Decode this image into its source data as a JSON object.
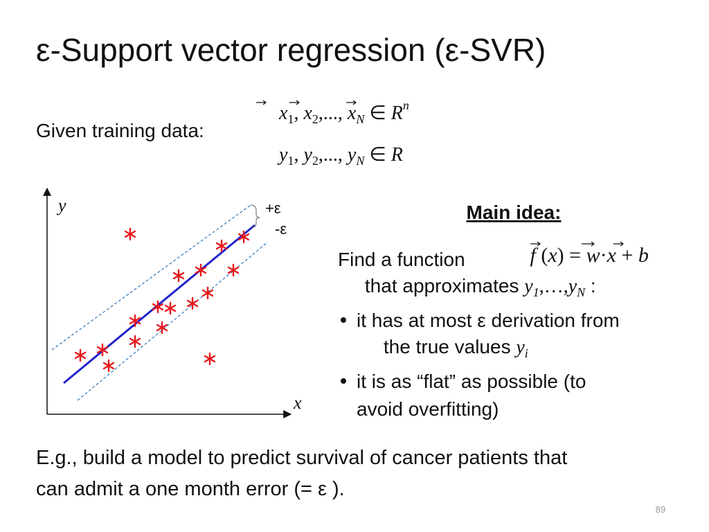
{
  "title": "ε-Support vector regression (ε-SVR)",
  "training": {
    "label": "Given training data:",
    "inputs": [
      "x",
      "1",
      ", ",
      "x",
      "2",
      ",..., ",
      "x",
      "N",
      " ∈ ",
      "R",
      "n"
    ],
    "targets": [
      "y",
      "1",
      ", ",
      "y",
      "2",
      ",..., ",
      "y",
      "N",
      " ∈ ",
      "R"
    ]
  },
  "plot": {
    "y_label": "y",
    "x_label": "x",
    "upper_margin": "+ε",
    "lower_margin": "-ε"
  },
  "main_idea": {
    "heading": "Main idea:",
    "intro": "Find a function",
    "function": [
      "f",
      " (",
      "x",
      ")",
      " = ",
      "w",
      "·",
      "x",
      " + ",
      "b"
    ],
    "line2": "that approximates ",
    "targets": [
      "y",
      "1",
      ",…,",
      "y",
      "N",
      " :"
    ],
    "bullets": [
      {
        "lines": [
          "it has at most ε derivation from",
          "the true values "
        ],
        "symbol": [
          "y",
          "i"
        ]
      },
      {
        "lines": [
          "it is as “flat” as possible (to",
          "avoid overfitting)"
        ]
      }
    ]
  },
  "example": [
    "E.g., build a model to predict survival of cancer patients that",
    "can admit a one month error (= ε )."
  ],
  "page_number": "89"
}
